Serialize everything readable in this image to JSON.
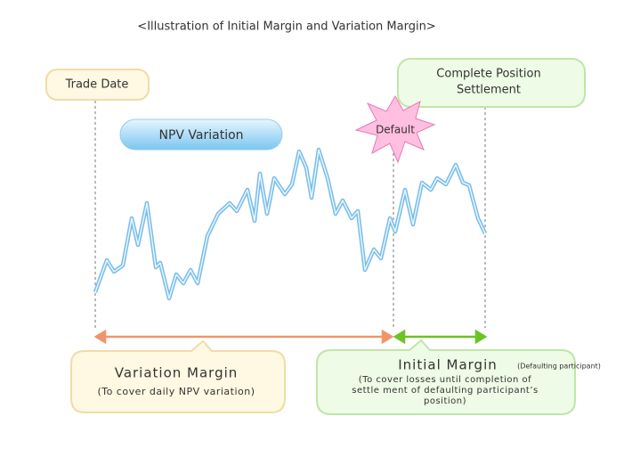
{
  "title": "<Illustration of Initial Margin and Variation Margin>",
  "labels": {
    "trade_date": "Trade Date",
    "settlement": [
      "Complete Position",
      "Settlement"
    ],
    "npv_variation": "NPV Variation",
    "default": "Default"
  },
  "variation_margin": {
    "title": "Variation Margin",
    "note": "(To cover daily NPV variation)"
  },
  "initial_margin": {
    "title": "Initial Margin",
    "qualifier": "(Defaulting participant)",
    "note": [
      "(To cover losses until completion of",
      "settle ment of defaulting participant’s",
      "position)"
    ]
  }
}
